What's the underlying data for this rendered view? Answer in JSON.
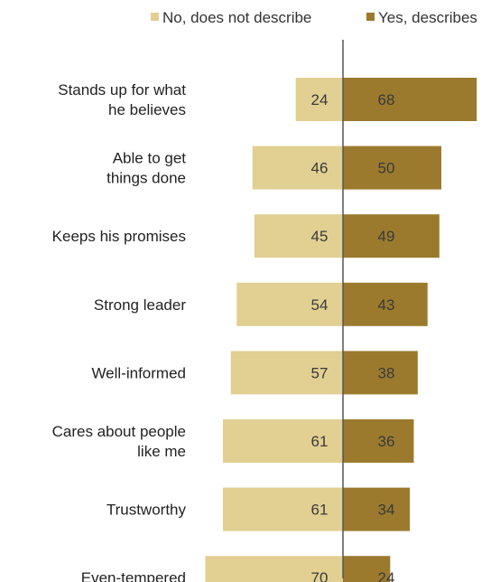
{
  "chart_data": {
    "type": "bar",
    "orientation": "horizontal-diverging",
    "categories": [
      [
        "Stands up for what",
        "he believes"
      ],
      [
        "Able to get",
        "things done"
      ],
      [
        "Keeps his promises"
      ],
      [
        "Strong leader"
      ],
      [
        "Well-informed"
      ],
      [
        "Cares about people",
        "like me"
      ],
      [
        "Trustworthy"
      ],
      [
        "Even-tempered"
      ]
    ],
    "series": [
      {
        "name": "No, does not describe",
        "color": "#e2cf92",
        "values": [
          24,
          46,
          45,
          54,
          57,
          61,
          61,
          70
        ]
      },
      {
        "name": "Yes, describes",
        "color": "#9b7a2e",
        "values": [
          68,
          50,
          49,
          43,
          38,
          36,
          34,
          24
        ]
      }
    ],
    "legend": {
      "placement": "top-right"
    },
    "grid": false,
    "xlim": [
      -70,
      70
    ]
  }
}
